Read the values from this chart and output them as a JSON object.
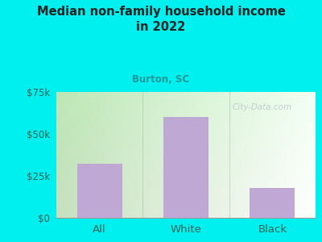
{
  "title": "Median non-family household income\nin 2022",
  "subtitle": "Burton, SC",
  "categories": [
    "All",
    "White",
    "Black"
  ],
  "values": [
    32000,
    60000,
    18000
  ],
  "bar_color": "#c0a8d5",
  "background_color": "#00EFEF",
  "chart_bg_left": "#c8e8c0",
  "chart_bg_right": "#f8f8f0",
  "title_color": "#222222",
  "subtitle_color": "#229999",
  "axis_label_color": "#336655",
  "ytick_color": "#336655",
  "ylim": [
    0,
    75000
  ],
  "yticks": [
    0,
    25000,
    50000,
    75000
  ],
  "ytick_labels": [
    "$0",
    "$25k",
    "$50k",
    "$75k"
  ],
  "watermark": "City-Data.com",
  "watermark_color": "#b8c8cc"
}
